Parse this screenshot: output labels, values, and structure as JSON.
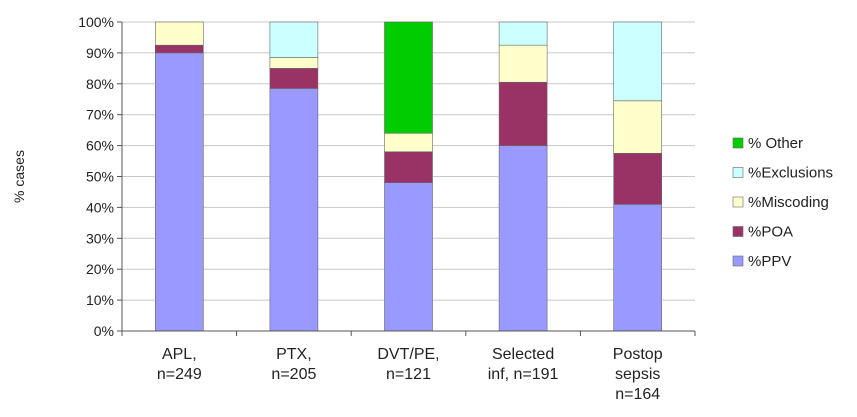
{
  "chart_data": {
    "type": "bar",
    "stacked": true,
    "categories": [
      [
        "APL,",
        "n=249"
      ],
      [
        "PTX,",
        "n=205"
      ],
      [
        "DVT/PE,",
        "n=121"
      ],
      [
        "Selected",
        "inf, n=191"
      ],
      [
        "Postop",
        "sepsis",
        "n=164"
      ]
    ],
    "series": [
      {
        "name": "%PPV",
        "color": "#9999ff",
        "values": [
          90,
          78.5,
          48,
          60,
          41
        ]
      },
      {
        "name": "%POA",
        "color": "#993366",
        "values": [
          2.5,
          6.5,
          10,
          20.5,
          16.5
        ]
      },
      {
        "name": "%Miscoding",
        "color": "#ffffcc",
        "values": [
          7.5,
          3.5,
          6,
          12,
          17
        ]
      },
      {
        "name": "%Exclusions",
        "color": "#ccffff",
        "values": [
          0,
          11.5,
          0,
          7.5,
          25.5
        ]
      },
      {
        "name": "% Other",
        "color": "#00cc00",
        "values": [
          0,
          0,
          36,
          0,
          0
        ]
      }
    ],
    "legend_order": [
      "% Other",
      "%Exclusions",
      "%Miscoding",
      "%POA",
      "%PPV"
    ],
    "ylabel": "% cases",
    "xlabel": "",
    "ylim": [
      0,
      100
    ],
    "y_ticks": [
      "0%",
      "10%",
      "20%",
      "30%",
      "40%",
      "50%",
      "60%",
      "70%",
      "80%",
      "90%",
      "100%"
    ],
    "legend_position": "right",
    "grid": true
  }
}
